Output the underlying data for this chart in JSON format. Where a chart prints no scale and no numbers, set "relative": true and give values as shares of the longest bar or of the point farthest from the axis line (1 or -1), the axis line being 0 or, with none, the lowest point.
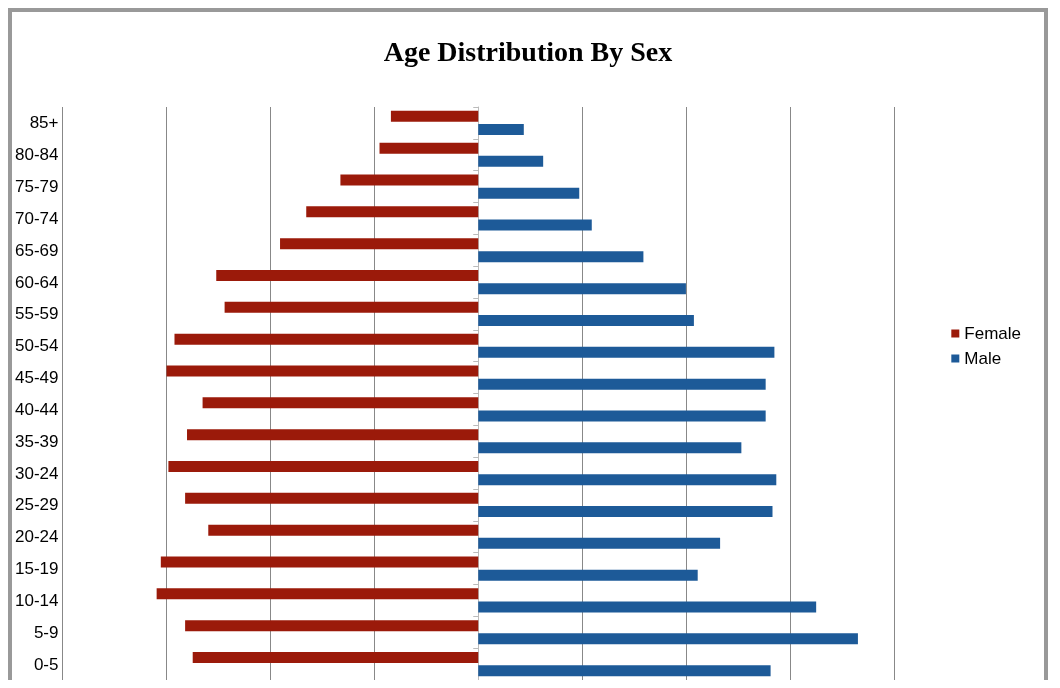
{
  "chart_data": {
    "type": "bar",
    "title": "Age Distribution By Sex",
    "orientation": "horizontal",
    "relative": true,
    "grid": "x",
    "legend": "right",
    "categories": [
      "85+",
      "80-84",
      "75-79",
      "70-74",
      "65-69",
      "60-64",
      "55-59",
      "50-54",
      "45-49",
      "40-44",
      "35-39",
      "30-24",
      "25-29",
      "20-24",
      "15-19",
      "10-14",
      "5-9",
      "0-5"
    ],
    "series": [
      {
        "name": "Female",
        "color": "#9b1a0a",
        "values": [
          -0.23,
          -0.26,
          -0.363,
          -0.453,
          -0.522,
          -0.69,
          -0.668,
          -0.8,
          -0.821,
          -0.726,
          -0.767,
          -0.816,
          -0.772,
          -0.711,
          -0.836,
          -0.847,
          -0.772,
          -0.752
        ]
      },
      {
        "name": "Male",
        "color": "#1d5a98",
        "values": [
          0.12,
          0.171,
          0.266,
          0.299,
          0.435,
          0.547,
          0.568,
          0.78,
          0.757,
          0.757,
          0.693,
          0.785,
          0.775,
          0.637,
          0.578,
          0.89,
          1,
          0.77
        ]
      }
    ]
  }
}
